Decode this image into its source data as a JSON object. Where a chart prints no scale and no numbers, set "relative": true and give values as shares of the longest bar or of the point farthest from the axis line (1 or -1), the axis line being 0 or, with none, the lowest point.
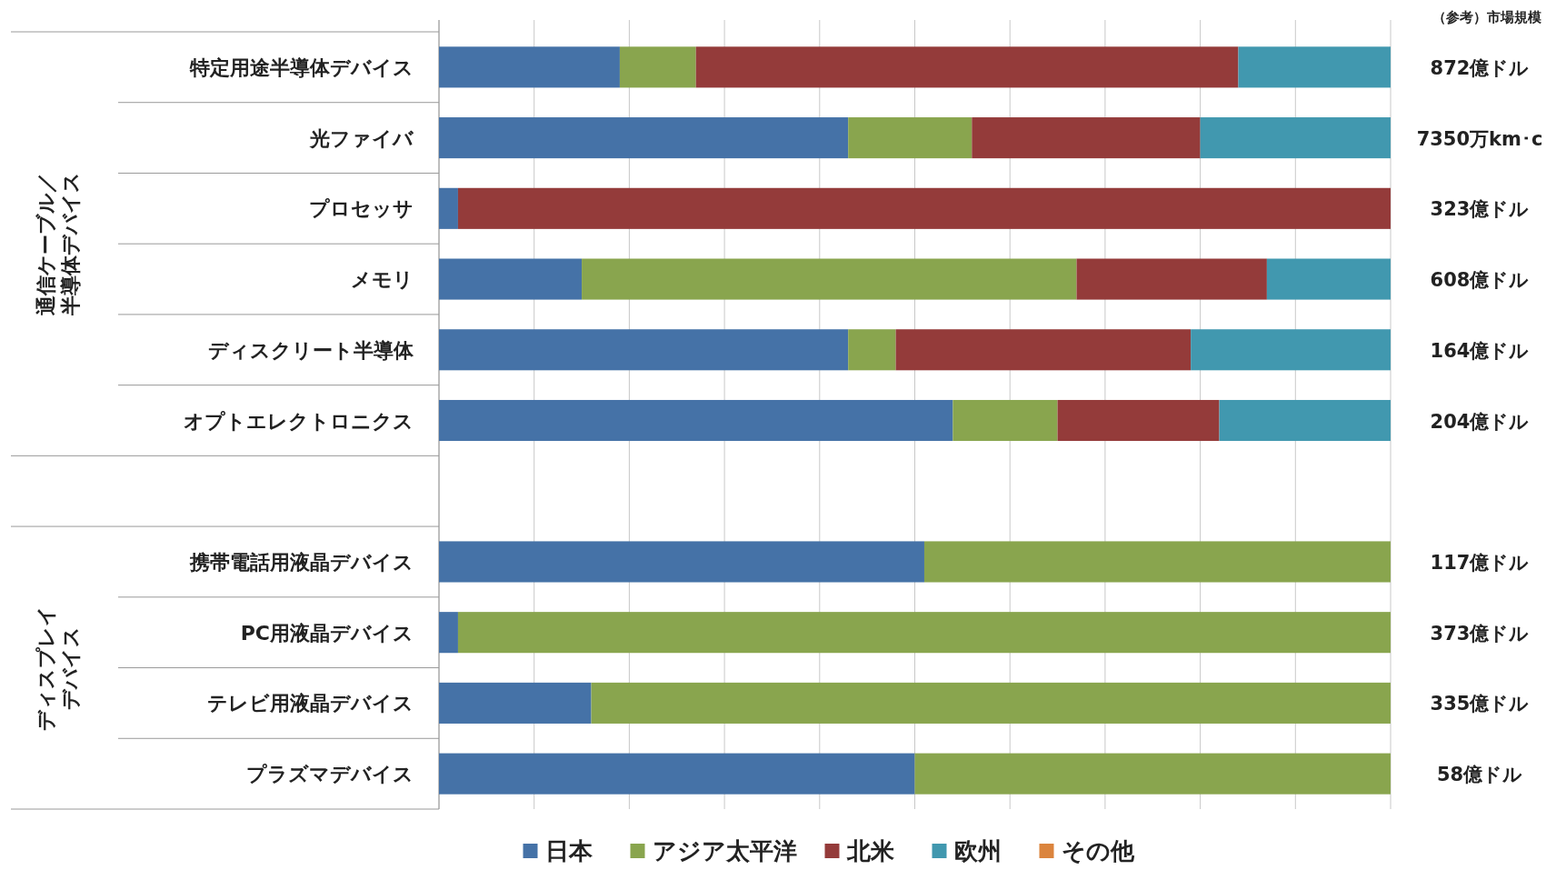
{
  "chart_data": {
    "type": "bar",
    "orientation": "horizontal",
    "stacked": true,
    "relative": true,
    "grid": "x",
    "legend": "bottom",
    "categories": [
      "特定用途半導体デバイス",
      "光ファイバ",
      "プロセッサ",
      "メモリ",
      "ディスクリート半導体",
      "オプトエレクトロニクス",
      null,
      "携帯電話用液晶デバイス",
      "PC用液晶デバイス",
      "テレビ用液晶デバイス",
      "プラズマデバイス"
    ],
    "series": [
      {
        "name": "日本",
        "color": "#4572a7",
        "values": [
          0.19,
          0.43,
          0.02,
          0.15,
          0.43,
          0.54,
          null,
          0.51,
          0.02,
          0.16,
          0.5
        ]
      },
      {
        "name": "アジア太平洋",
        "color": "#89a54e",
        "values": [
          0.08,
          0.13,
          null,
          0.52,
          0.05,
          0.11,
          null,
          0.49,
          0.98,
          0.84,
          0.5
        ]
      },
      {
        "name": "北米",
        "color": "#943b3a",
        "values": [
          0.57,
          0.24,
          0.98,
          0.2,
          0.31,
          0.17,
          null,
          null,
          null,
          null,
          null
        ]
      },
      {
        "name": "欧州",
        "color": "#4198af",
        "values": [
          0.16,
          0.2,
          null,
          0.13,
          0.21,
          0.18,
          null,
          null,
          null,
          null,
          null
        ]
      },
      {
        "name": "その他",
        "color": "#db843d",
        "values": [
          null,
          null,
          null,
          null,
          null,
          null,
          null,
          null,
          null,
          null,
          null
        ]
      }
    ],
    "annotations": [
      "（参考）市場規模",
      "通信ケーブル／",
      "半導体デバイス",
      "ディスプレイ",
      "デバイス",
      "872億ドル",
      "7350万km･c",
      "323億ドル",
      "608億ドル",
      "164億ドル",
      "204億ドル",
      "117億ドル",
      "373億ドル",
      "335億ドル",
      "58億ドル"
    ]
  }
}
